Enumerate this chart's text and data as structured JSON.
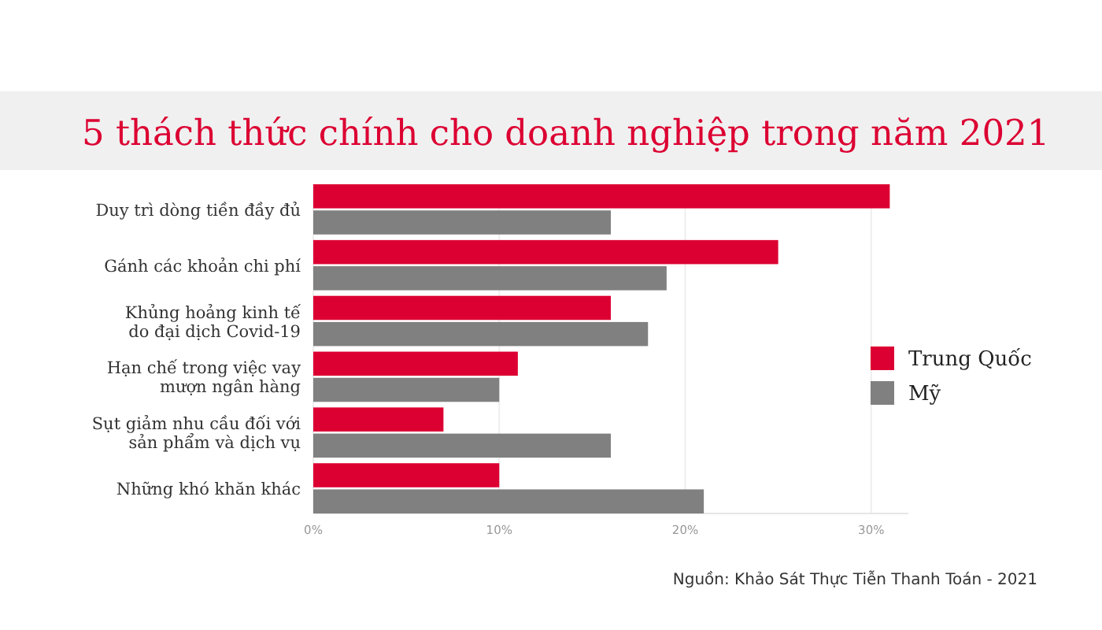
{
  "chart_data": {
    "type": "bar",
    "orientation": "horizontal",
    "title": "5 thách thức chính cho doanh nghiệp trong năm 2021",
    "categories": [
      "Duy trì dòng tiền đầy đủ",
      "Gánh các khoản chi phí",
      "Khủng hoảng kinh tế\ndo đại dịch Covid-19",
      "Hạn chế trong việc vay\nmượn ngân hàng",
      "Sụt giảm nhu cầu đối với\nsản phẩm và dịch vụ",
      "Những khó khăn khác"
    ],
    "series": [
      {
        "name": "Trung Quốc",
        "color": "#dc0032",
        "values": [
          31,
          25,
          16,
          11,
          7,
          10
        ]
      },
      {
        "name": "Mỹ",
        "color": "#808080",
        "values": [
          16,
          19,
          18,
          10,
          16,
          21
        ]
      }
    ],
    "xlim": [
      0,
      32
    ],
    "xticks": [
      {
        "value": 0,
        "label": "0%"
      },
      {
        "value": 10,
        "label": "10%"
      },
      {
        "value": 20,
        "label": "20%"
      },
      {
        "value": 30,
        "label": "30%"
      }
    ],
    "grid": "x",
    "legend": "right",
    "annotations": [
      "Nguồn: Khảo Sát Thực Tiễn Thanh Toán - 2021"
    ]
  }
}
